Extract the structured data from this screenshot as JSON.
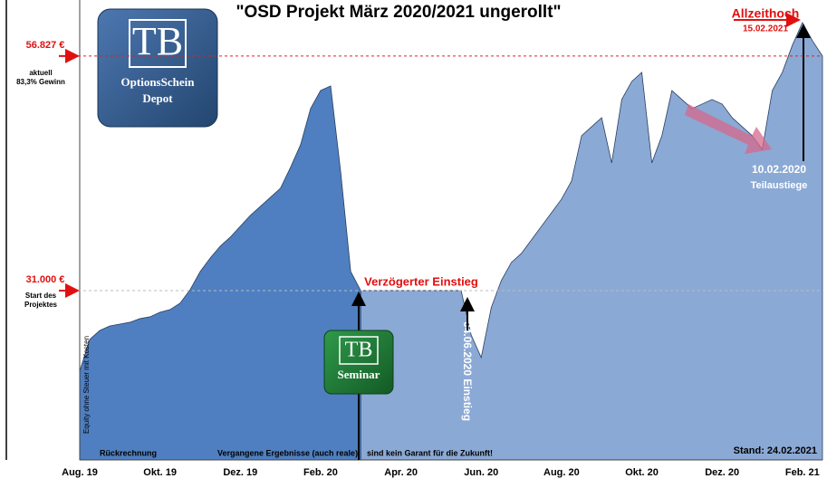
{
  "chart_data": {
    "type": "area",
    "title": "\"OSD Projekt März 2020/2021 ungerollt\"",
    "ylabel": "Equity ohne Steuer mit Kosten",
    "categories": [
      "Aug. 19",
      null,
      null,
      null,
      null,
      null,
      null,
      null,
      "Okt. 19",
      null,
      null,
      null,
      null,
      null,
      null,
      null,
      "Dez. 19",
      null,
      null,
      null,
      null,
      null,
      null,
      null,
      "Feb. 20",
      null,
      null,
      null,
      null,
      null,
      null,
      null,
      "Apr. 20",
      null,
      null,
      null,
      null,
      null,
      null,
      null,
      "Jun. 20",
      null,
      null,
      null,
      null,
      null,
      null,
      null,
      "Aug. 20",
      null,
      null,
      null,
      null,
      null,
      null,
      null,
      "Okt. 20",
      null,
      null,
      null,
      null,
      null,
      null,
      null,
      "Dez. 20",
      null,
      null,
      null,
      null,
      null,
      null,
      null,
      "Feb. 21",
      null,
      null
    ],
    "series": [
      {
        "color": "#4f7fc0",
        "values": [
          22130,
          25620,
          26610,
          27110,
          27310,
          27510,
          27910,
          28110,
          28610,
          28910,
          29610,
          31100,
          33090,
          34590,
          35890,
          36880,
          38080,
          39280,
          40270,
          41270,
          42270,
          44560,
          47050,
          51040,
          53030,
          53530,
          44060,
          33090,
          31000,
          null,
          null,
          null,
          null,
          null,
          null,
          null,
          null,
          null,
          null,
          null,
          null,
          null,
          null,
          null,
          null,
          null,
          null,
          null,
          null,
          null,
          null,
          null,
          null,
          null,
          null,
          null,
          null,
          null,
          null,
          null,
          null,
          null,
          null,
          null,
          null,
          null,
          null,
          null,
          null,
          null,
          null,
          null,
          null,
          null,
          null
        ]
      },
      {
        "color": "#8ba9d5",
        "values": [
          null,
          null,
          null,
          null,
          null,
          null,
          null,
          null,
          null,
          null,
          null,
          null,
          null,
          null,
          null,
          null,
          null,
          null,
          null,
          null,
          null,
          null,
          null,
          null,
          null,
          null,
          null,
          null,
          31000,
          31000,
          31000,
          31000,
          31000,
          31000,
          31000,
          31000,
          31000,
          31000,
          31000,
          26110,
          23620,
          29110,
          32100,
          34090,
          35090,
          36580,
          38080,
          39570,
          41070,
          43060,
          48050,
          49050,
          50040,
          45060,
          52040,
          54030,
          55030,
          45060,
          48050,
          53030,
          52040,
          51040,
          51540,
          52040,
          51540,
          50040,
          49050,
          48050,
          46550,
          53030,
          55030,
          58020,
          60510,
          58520,
          56827
        ]
      }
    ],
    "ylim": [
      12350,
      63000
    ],
    "reference_lines": [
      {
        "value": 56827,
        "label": "56.827 €",
        "color": "#e02020"
      },
      {
        "value": 31000,
        "label": "31.000 €",
        "color": "#bbbbbb"
      }
    ],
    "annotations": {
      "current": "aktuell",
      "gain": "83,3% Gewinn",
      "start1": "Start des",
      "start2": "Projektes",
      "delayed": "Verzögerter Einstieg",
      "entry": "04.06.2020 Einstieg",
      "ath": "Allzeithoch",
      "ath_date": "15.02.2021",
      "exit_date": "10.02.2020",
      "exit": "Teilaustiege",
      "backtest": "Rückrechnung",
      "disclaimer1": "Vergangene Ergebnisse (auch reale)",
      "disclaimer2": "sind kein Garant  für die Zukunft!",
      "stand": "Stand: 24.02.2021"
    },
    "logos": {
      "tb1": "TB",
      "depot1": "OptionsSchein",
      "depot2": "Depot",
      "tb2": "TB",
      "seminar": "Seminar"
    }
  }
}
